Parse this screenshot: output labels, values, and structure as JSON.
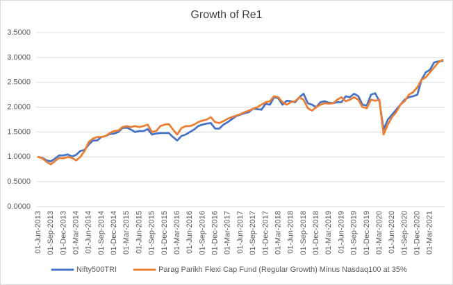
{
  "chart_data": {
    "type": "line",
    "title": "Growth of Re1",
    "categories": [
      "01-Jun-2013",
      null,
      null,
      "01-Sep-2013",
      null,
      null,
      "01-Dec-2013",
      null,
      null,
      "01-Mar-2014",
      null,
      null,
      "01-Jun-2014",
      null,
      null,
      "01-Sep-2014",
      null,
      null,
      "01-Dec-2014",
      null,
      null,
      "01-Mar-2015",
      null,
      null,
      "01-Jun-2015",
      null,
      null,
      "01-Sep-2015",
      null,
      null,
      "01-Dec-2015",
      null,
      null,
      "01-Mar-2016",
      null,
      null,
      "01-Jun-2016",
      null,
      null,
      "01-Sep-2016",
      null,
      null,
      "01-Dec-2016",
      null,
      null,
      "01-Mar-2017",
      null,
      null,
      "01-Jun-2017",
      null,
      null,
      "01-Sep-2017",
      null,
      null,
      "01-Dec-2017",
      null,
      null,
      "01-Mar-2018",
      null,
      null,
      "01-Jun-2018",
      null,
      null,
      "01-Sep-2018",
      null,
      null,
      "01-Dec-2018",
      null,
      null,
      "01-Mar-2019",
      null,
      null,
      "01-Jun-2019",
      null,
      null,
      "01-Sep-2019",
      null,
      null,
      "01-Dec-2019",
      null,
      null,
      "01-Mar-2020",
      null,
      null,
      "01-Jun-2020",
      null,
      null,
      "01-Sep-2020",
      null,
      null,
      "01-Dec-2020",
      null,
      null,
      "01-Mar-2021",
      null,
      null,
      null
    ],
    "series": [
      {
        "name": "Nifty500TRI",
        "color": "#4472c4",
        "values": [
          1.0,
          0.98,
          0.93,
          0.91,
          0.97,
          1.03,
          1.03,
          1.05,
          1.01,
          1.04,
          1.12,
          1.14,
          1.25,
          1.33,
          1.33,
          1.4,
          1.42,
          1.46,
          1.47,
          1.5,
          1.58,
          1.59,
          1.55,
          1.5,
          1.52,
          1.52,
          1.56,
          1.45,
          1.47,
          1.48,
          1.48,
          1.48,
          1.4,
          1.33,
          1.42,
          1.45,
          1.5,
          1.55,
          1.62,
          1.65,
          1.67,
          1.68,
          1.57,
          1.57,
          1.65,
          1.7,
          1.76,
          1.82,
          1.85,
          1.88,
          1.9,
          1.97,
          1.96,
          1.95,
          2.07,
          2.05,
          2.2,
          2.18,
          2.05,
          2.13,
          2.12,
          2.1,
          2.2,
          2.27,
          2.08,
          2.05,
          2.0,
          2.1,
          2.12,
          2.09,
          2.08,
          2.1,
          2.1,
          2.22,
          2.2,
          2.27,
          2.22,
          2.05,
          2.03,
          2.25,
          2.28,
          2.12,
          1.55,
          1.75,
          1.85,
          1.95,
          2.05,
          2.15,
          2.2,
          2.22,
          2.25,
          2.55,
          2.7,
          2.75,
          2.9,
          2.92,
          2.93
        ]
      },
      {
        "name": "Parag Parikh Flexi Cap Fund (Regular Growth) Minus Nasdaq100 at 35%",
        "color": "#ed7d31",
        "values": [
          1.0,
          0.97,
          0.9,
          0.85,
          0.92,
          0.98,
          0.97,
          1.0,
          0.98,
          0.93,
          1.0,
          1.12,
          1.3,
          1.37,
          1.4,
          1.4,
          1.42,
          1.48,
          1.52,
          1.53,
          1.6,
          1.62,
          1.6,
          1.62,
          1.6,
          1.62,
          1.65,
          1.5,
          1.52,
          1.62,
          1.65,
          1.66,
          1.55,
          1.45,
          1.58,
          1.62,
          1.62,
          1.65,
          1.7,
          1.73,
          1.75,
          1.8,
          1.7,
          1.68,
          1.72,
          1.77,
          1.8,
          1.83,
          1.86,
          1.9,
          1.93,
          1.97,
          2.0,
          2.05,
          2.1,
          2.12,
          2.22,
          2.2,
          2.1,
          2.05,
          2.1,
          2.12,
          2.2,
          2.15,
          1.98,
          1.93,
          2.0,
          2.05,
          2.08,
          2.07,
          2.08,
          2.15,
          2.2,
          2.12,
          2.15,
          2.2,
          2.15,
          2.0,
          1.98,
          2.15,
          2.13,
          2.15,
          1.45,
          1.65,
          1.8,
          1.9,
          2.05,
          2.12,
          2.25,
          2.3,
          2.4,
          2.55,
          2.6,
          2.7,
          2.8,
          2.9,
          2.95
        ]
      }
    ],
    "ylim": [
      0,
      3.5
    ],
    "yticks": [
      {
        "value": 0,
        "label": "0.0000"
      },
      {
        "value": 0.5,
        "label": "0.5000"
      },
      {
        "value": 1,
        "label": "1.0000"
      },
      {
        "value": 1.5,
        "label": "1.5000"
      },
      {
        "value": 2,
        "label": "2.0000"
      },
      {
        "value": 2.5,
        "label": "2.5000"
      },
      {
        "value": 3,
        "label": "3.0000"
      },
      {
        "value": 3.5,
        "label": "3.5000"
      }
    ],
    "grid": true,
    "legend": "bottom"
  }
}
